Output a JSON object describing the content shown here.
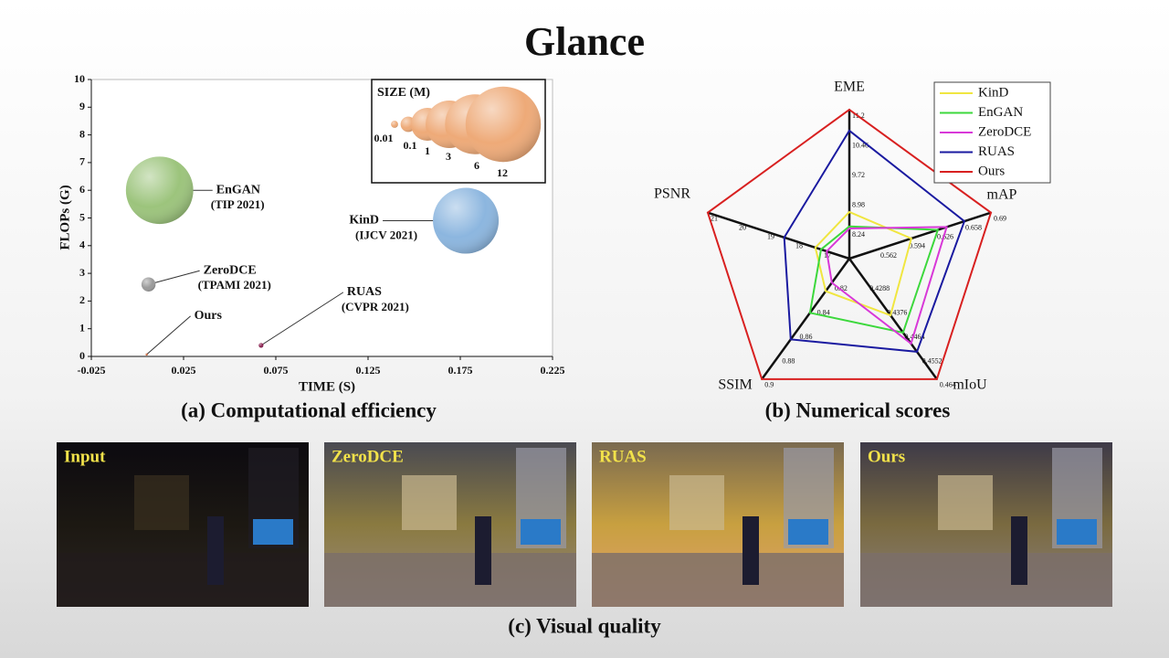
{
  "title": "Glance",
  "captions": [
    "(a) Computational efficiency",
    "(b) Numerical scores",
    "(c) Visual quality"
  ],
  "images": [
    {
      "label": "Input"
    },
    {
      "label": "ZeroDCE"
    },
    {
      "label": "RUAS"
    },
    {
      "label": "Ours"
    }
  ],
  "chart_data": [
    {
      "type": "bubble",
      "xlabel": "TIME (S)",
      "ylabel": "FLOPs (G)",
      "xlim": [
        -0.025,
        0.225
      ],
      "xticks": [
        -0.025,
        0.025,
        0.075,
        0.125,
        0.175,
        0.225
      ],
      "ylim": [
        0,
        10
      ],
      "yticks": [
        0,
        1,
        2,
        3,
        4,
        5,
        6,
        7,
        8,
        9,
        10
      ],
      "size_legend": {
        "title": "SIZE (M)",
        "color": "#eeaa78",
        "values": [
          0.01,
          0.1,
          1,
          3,
          6,
          12
        ]
      },
      "series": [
        {
          "name": "EnGAN",
          "venue": "(TIP 2021)",
          "color": "#9cc47c",
          "x": [
            0.012
          ],
          "values": [
            6.0
          ],
          "sizes": [
            8.6
          ]
        },
        {
          "name": "KinD",
          "venue": "(IJCV 2021)",
          "color": "#8cb6df",
          "x": [
            0.178
          ],
          "values": [
            4.9
          ],
          "sizes": [
            8.0
          ]
        },
        {
          "name": "ZeroDCE",
          "venue": "(TPAMI 2021)",
          "color": "#9a9a9a",
          "x": [
            0.006
          ],
          "values": [
            2.6
          ],
          "sizes": [
            0.079
          ]
        },
        {
          "name": "RUAS",
          "venue": "(CVPR 2021)",
          "color": "#8a2050",
          "x": [
            0.067
          ],
          "values": [
            0.4
          ],
          "sizes": [
            0.003
          ]
        },
        {
          "name": "Ours",
          "color": "#c05020",
          "x": [
            0.005
          ],
          "values": [
            0.07
          ],
          "sizes": [
            0.0003
          ]
        }
      ]
    },
    {
      "type": "radar",
      "legend": "top-right",
      "axes": [
        {
          "name": "EME",
          "lim": [
            7.5,
            11.2
          ],
          "ticks": [
            8.24,
            8.98,
            9.72,
            10.46,
            11.2
          ]
        },
        {
          "name": "mAP",
          "lim": [
            0.53,
            0.69
          ],
          "ticks": [
            0.562,
            0.594,
            0.626,
            0.658,
            0.69
          ]
        },
        {
          "name": "mIoU",
          "lim": [
            0.42,
            0.464
          ],
          "ticks": [
            0.4288,
            0.4376,
            0.4464,
            0.4552,
            0.464
          ]
        },
        {
          "name": "SSIM",
          "lim": [
            0.8,
            0.9
          ],
          "ticks": [
            0.82,
            0.84,
            0.86,
            0.88,
            0.9
          ]
        },
        {
          "name": "PSNR",
          "lim": [
            16,
            21
          ],
          "ticks": [
            17,
            18,
            19,
            20,
            21
          ]
        }
      ],
      "series": [
        {
          "name": "KinD",
          "color": "#f0e640",
          "values": [
            8.66,
            0.6,
            0.4407,
            0.827,
            17.2
          ]
        },
        {
          "name": "EnGAN",
          "color": "#3cd83c",
          "values": [
            8.3,
            0.63,
            0.447,
            0.845,
            17.0
          ]
        },
        {
          "name": "ZeroDCE",
          "color": "#d838d8",
          "values": [
            8.25,
            0.64,
            0.451,
            0.82,
            16.8
          ]
        },
        {
          "name": "RUAS",
          "color": "#1a1aa0",
          "values": [
            10.68,
            0.66,
            0.454,
            0.867,
            18.3
          ]
        },
        {
          "name": "Ours",
          "color": "#d82020",
          "values": [
            11.2,
            0.69,
            0.464,
            0.9,
            21
          ]
        }
      ]
    }
  ]
}
